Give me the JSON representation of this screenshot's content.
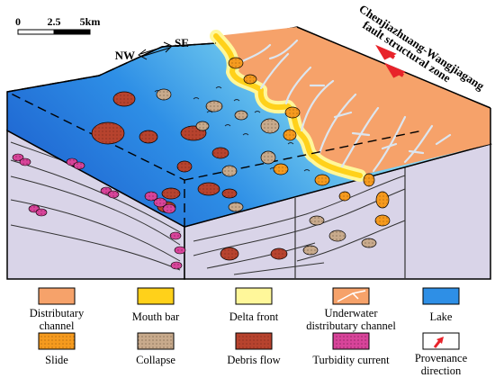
{
  "scale_bar": {
    "tick_0": "0",
    "tick_1": "2.5",
    "tick_2": "5km"
  },
  "orientation": {
    "west": "NW",
    "east": "SE"
  },
  "fault_label": {
    "line1": "Chenjiazhuang-Wangjiagang",
    "line2": "fault structural zone"
  },
  "legend": [
    {
      "key": "distributary-channel",
      "line1": "Distributary",
      "line2": "channel",
      "color": "#F6A26A"
    },
    {
      "key": "mouth-bar",
      "line1": "Mouth bar",
      "line2": "",
      "color": "#FFD11A"
    },
    {
      "key": "delta-front",
      "line1": "Delta front",
      "line2": "",
      "color": "#FFF79A"
    },
    {
      "key": "underwater-channel",
      "line1": "Underwater",
      "line2": "distributary channel",
      "color": "#F6A26A"
    },
    {
      "key": "lake",
      "line1": "Lake",
      "line2": "",
      "color": "#2E8FE6"
    },
    {
      "key": "slide",
      "line1": "Slide",
      "line2": "",
      "color": "#F59A1E"
    },
    {
      "key": "collapse",
      "line1": "Collapse",
      "line2": "",
      "color": "#C8AA8C"
    },
    {
      "key": "debris-flow",
      "line1": "Debris flow",
      "line2": "",
      "color": "#B7432E"
    },
    {
      "key": "turbidity-current",
      "line1": "Turbidity current",
      "line2": "",
      "color": "#D8449A"
    },
    {
      "key": "provenance-direction",
      "line1": "Provenance",
      "line2": "direction",
      "color": "#E8232A"
    }
  ],
  "colors": {
    "lake_deep": "#1E6FD6",
    "lake_shallow": "#8ED8F2",
    "plain": "#F6A26A",
    "block_side": "#D9D4E8",
    "mouth_bar": "#FFD11A",
    "delta_front": "#FFF79A",
    "channel_lines": "#DCE6F0",
    "arrow": "#E8232A"
  }
}
